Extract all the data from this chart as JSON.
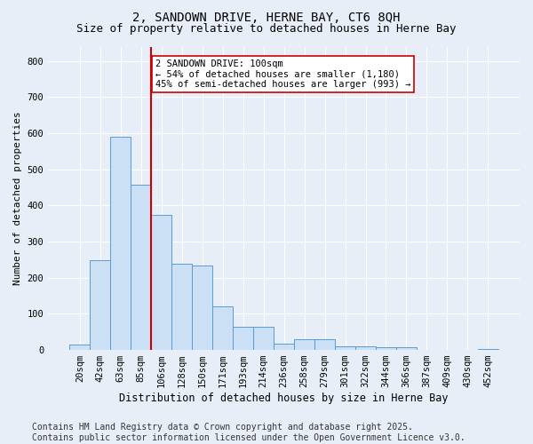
{
  "title1": "2, SANDOWN DRIVE, HERNE BAY, CT6 8QH",
  "title2": "Size of property relative to detached houses in Herne Bay",
  "xlabel": "Distribution of detached houses by size in Herne Bay",
  "ylabel": "Number of detached properties",
  "categories": [
    "20sqm",
    "42sqm",
    "63sqm",
    "85sqm",
    "106sqm",
    "128sqm",
    "150sqm",
    "171sqm",
    "193sqm",
    "214sqm",
    "236sqm",
    "258sqm",
    "279sqm",
    "301sqm",
    "322sqm",
    "344sqm",
    "366sqm",
    "387sqm",
    "409sqm",
    "430sqm",
    "452sqm"
  ],
  "values": [
    15,
    248,
    590,
    458,
    375,
    238,
    235,
    120,
    65,
    65,
    18,
    30,
    30,
    10,
    10,
    8,
    8,
    0,
    0,
    0,
    3
  ],
  "bar_color": "#cce0f5",
  "bar_edge_color": "#5b9bd5",
  "vline_color": "#cc0000",
  "annotation_text": "2 SANDOWN DRIVE: 100sqm\n← 54% of detached houses are smaller (1,180)\n45% of semi-detached houses are larger (993) →",
  "annotation_box_color": "#ffffff",
  "annotation_box_edge_color": "#cc0000",
  "footnote": "Contains HM Land Registry data © Crown copyright and database right 2025.\nContains public sector information licensed under the Open Government Licence v3.0.",
  "background_color": "#e8eef8",
  "plot_background_color": "#e8eef8",
  "ylim": [
    0,
    840
  ],
  "title1_fontsize": 10,
  "title2_fontsize": 9,
  "xlabel_fontsize": 8.5,
  "ylabel_fontsize": 8,
  "tick_fontsize": 7.5,
  "footnote_fontsize": 7,
  "annot_fontsize": 7.5
}
